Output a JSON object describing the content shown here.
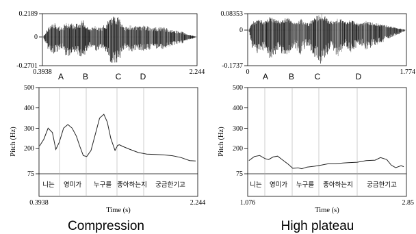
{
  "panels": [
    {
      "caption": "Compression",
      "wave_y_max": "0.2189",
      "wave_y_zero": "0",
      "wave_y_min": "-0.2701",
      "wave_x_start": "0.3938",
      "wave_x_end": "2.244",
      "points": [
        "A",
        "B",
        "C",
        "D"
      ],
      "pitch_y_ticks": [
        "500",
        "400",
        "300",
        "200",
        "75"
      ],
      "pitch_ylabel": "Pitch (Hz)",
      "pitch_x_start": "0.3938",
      "pitch_x_end": "2.244",
      "pitch_xlabel": "Time (s)",
      "segments": [
        "니는",
        "영미가",
        "누구를",
        "좋아하는지",
        "궁금한기고"
      ]
    },
    {
      "caption": "High plateau",
      "wave_y_max": "0.08353",
      "wave_y_zero": "0",
      "wave_y_min": "-0.1737",
      "wave_x_start": "0",
      "wave_x_end": "1.774",
      "points": [
        "A",
        "B",
        "C",
        "D"
      ],
      "pitch_y_ticks": [
        "500",
        "400",
        "300",
        "200",
        "75"
      ],
      "pitch_ylabel": "Pitch (Hz)",
      "pitch_x_start": "1.076",
      "pitch_x_end": "2.85",
      "pitch_xlabel": "Time (s)",
      "segments": [
        "니는",
        "영미가",
        "누구를",
        "좋아하는지",
        "궁금한기고"
      ]
    }
  ],
  "chart_data": [
    {
      "type": "line",
      "title": "Compression",
      "ylabel": "Pitch (Hz)",
      "xlabel": "Time (s)",
      "xlim": [
        0.3938,
        2.244
      ],
      "ylim": [
        75,
        500
      ],
      "x": [
        0.4,
        0.45,
        0.5,
        0.55,
        0.59,
        0.63,
        0.68,
        0.73,
        0.78,
        0.83,
        0.87,
        0.91,
        0.95,
        1.0,
        1.05,
        1.1,
        1.15,
        1.19,
        1.23,
        1.28,
        1.31,
        1.33,
        1.37,
        1.45,
        1.55,
        1.65,
        1.75,
        1.85,
        1.95,
        2.05,
        2.15,
        2.22
      ],
      "series": [
        {
          "values": [
            212,
            245,
            300,
            278,
            195,
            230,
            300,
            318,
            300,
            260,
            210,
            165,
            160,
            190,
            270,
            350,
            368,
            330,
            250,
            190,
            215,
            218,
            210,
            196,
            180,
            172,
            170,
            168,
            164,
            155,
            140,
            138
          ]
        }
      ]
    },
    {
      "type": "line",
      "title": "High plateau",
      "ylabel": "Pitch (Hz)",
      "xlabel": "Time (s)",
      "xlim": [
        1.076,
        2.85
      ],
      "ylim": [
        75,
        500
      ],
      "x": [
        1.09,
        1.15,
        1.21,
        1.27,
        1.31,
        1.36,
        1.41,
        1.47,
        1.53,
        1.58,
        1.64,
        1.68,
        1.74,
        1.82,
        1.9,
        1.98,
        2.06,
        2.14,
        2.2,
        2.3,
        2.4,
        2.5,
        2.56,
        2.63,
        2.68,
        2.73,
        2.79,
        2.82
      ],
      "series": [
        {
          "values": [
            140,
            160,
            165,
            150,
            145,
            158,
            162,
            142,
            122,
            102,
            104,
            100,
            108,
            112,
            118,
            125,
            125,
            128,
            130,
            132,
            140,
            142,
            155,
            145,
            118,
            105,
            115,
            110
          ]
        }
      ]
    }
  ]
}
